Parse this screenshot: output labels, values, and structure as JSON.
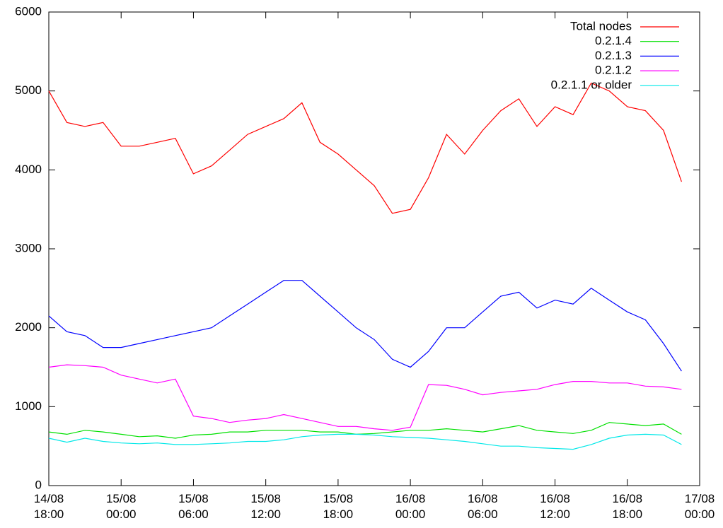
{
  "chart_data": {
    "type": "line",
    "x": [
      "14/08 18:00",
      "14/08 19:30",
      "14/08 21:00",
      "14/08 22:30",
      "15/08 00:00",
      "15/08 01:30",
      "15/08 03:00",
      "15/08 04:30",
      "15/08 06:00",
      "15/08 07:30",
      "15/08 09:00",
      "15/08 10:30",
      "15/08 12:00",
      "15/08 13:30",
      "15/08 15:00",
      "15/08 16:30",
      "15/08 18:00",
      "15/08 19:30",
      "15/08 21:00",
      "15/08 22:30",
      "16/08 00:00",
      "16/08 01:30",
      "16/08 03:00",
      "16/08 04:30",
      "16/08 06:00",
      "16/08 07:30",
      "16/08 09:00",
      "16/08 10:30",
      "16/08 12:00",
      "16/08 13:30",
      "16/08 15:00",
      "16/08 16:30",
      "16/08 18:00",
      "16/08 19:30",
      "16/08 21:00",
      "16/08 22:30"
    ],
    "series": [
      {
        "name": "Total nodes",
        "color": "#ff0000",
        "values": [
          5000,
          4600,
          4550,
          4600,
          4300,
          4300,
          4350,
          4400,
          3950,
          4050,
          4250,
          4450,
          4550,
          4650,
          4850,
          4350,
          4200,
          4000,
          3800,
          3450,
          3500,
          3900,
          4450,
          4200,
          4500,
          4750,
          4900,
          4550,
          4800,
          4700,
          5100,
          5000,
          4800,
          4750,
          4500,
          3850
        ]
      },
      {
        "name": "0.2.1.4",
        "color": "#00e000",
        "values": [
          680,
          650,
          700,
          680,
          650,
          620,
          630,
          600,
          640,
          650,
          680,
          680,
          700,
          700,
          700,
          680,
          680,
          650,
          660,
          680,
          700,
          700,
          720,
          700,
          680,
          720,
          760,
          700,
          680,
          660,
          700,
          800,
          780,
          760,
          780,
          650
        ]
      },
      {
        "name": "0.2.1.3",
        "color": "#0000ff",
        "values": [
          2150,
          1950,
          1900,
          1750,
          1750,
          1800,
          1850,
          1900,
          1950,
          2000,
          2150,
          2300,
          2450,
          2600,
          2600,
          2400,
          2200,
          2000,
          1850,
          1600,
          1500,
          1700,
          2000,
          2000,
          2200,
          2400,
          2450,
          2250,
          2350,
          2300,
          2500,
          2350,
          2200,
          2100,
          1800,
          1450
        ]
      },
      {
        "name": "0.2.1.2",
        "color": "#ff00ff",
        "values": [
          1500,
          1530,
          1520,
          1500,
          1400,
          1350,
          1300,
          1350,
          880,
          850,
          800,
          830,
          850,
          900,
          850,
          800,
          750,
          750,
          720,
          700,
          740,
          1280,
          1270,
          1220,
          1150,
          1180,
          1200,
          1220,
          1280,
          1320,
          1320,
          1300,
          1300,
          1260,
          1250,
          1220
        ]
      },
      {
        "name": "0.2.1.1 or older",
        "color": "#00e8e8",
        "values": [
          600,
          550,
          600,
          560,
          540,
          530,
          540,
          520,
          520,
          530,
          540,
          560,
          560,
          580,
          620,
          640,
          650,
          650,
          640,
          620,
          610,
          600,
          580,
          560,
          530,
          500,
          500,
          480,
          470,
          460,
          520,
          600,
          640,
          650,
          640,
          520
        ]
      }
    ],
    "xlim": [
      "14/08 18:00",
      "17/08 00:00"
    ],
    "xticks": [
      {
        "value": "14/08 18:00",
        "label": "14/08\n18:00"
      },
      {
        "value": "15/08 00:00",
        "label": "15/08\n00:00"
      },
      {
        "value": "15/08 06:00",
        "label": "15/08\n06:00"
      },
      {
        "value": "15/08 12:00",
        "label": "15/08\n12:00"
      },
      {
        "value": "15/08 18:00",
        "label": "15/08\n18:00"
      },
      {
        "value": "16/08 00:00",
        "label": "16/08\n00:00"
      },
      {
        "value": "16/08 06:00",
        "label": "16/08\n06:00"
      },
      {
        "value": "16/08 12:00",
        "label": "16/08\n12:00"
      },
      {
        "value": "16/08 18:00",
        "label": "16/08\n18:00"
      },
      {
        "value": "17/08 00:00",
        "label": "17/08\n00:00"
      }
    ],
    "ylim": [
      0,
      6000
    ],
    "yticks": [
      0,
      1000,
      2000,
      3000,
      4000,
      5000,
      6000
    ],
    "legend": "top-right"
  }
}
